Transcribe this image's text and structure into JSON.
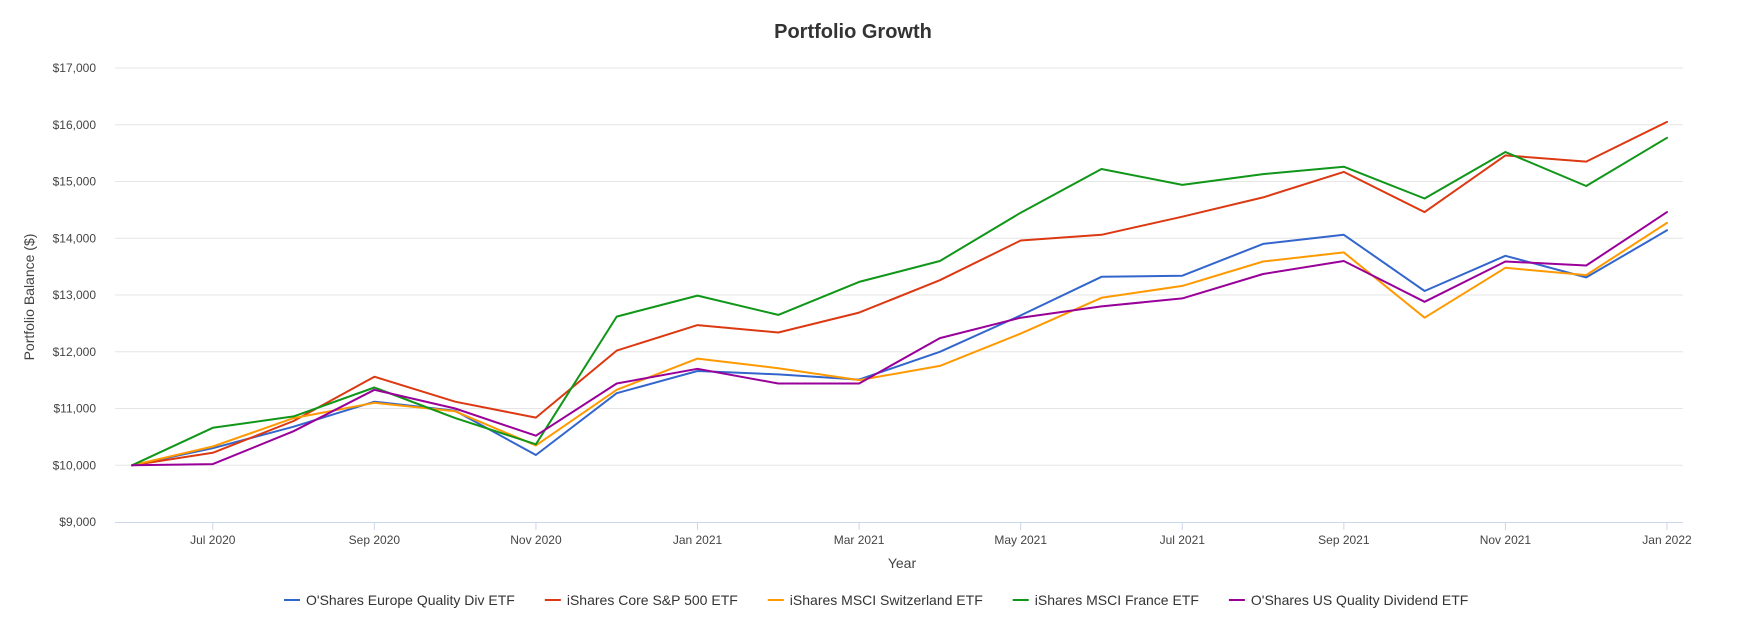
{
  "chart_data": {
    "type": "line",
    "title": "Portfolio Growth",
    "xlabel": "Year",
    "ylabel": "Portfolio Balance ($)",
    "ylim": [
      9000,
      17000
    ],
    "y_ticks": [
      "$9,000",
      "$10,000",
      "$11,000",
      "$12,000",
      "$13,000",
      "$14,000",
      "$15,000",
      "$16,000",
      "$17,000"
    ],
    "y_tick_values": [
      9000,
      10000,
      11000,
      12000,
      13000,
      14000,
      15000,
      16000,
      17000
    ],
    "x_ticks": [
      "Jul 2020",
      "Sep 2020",
      "Nov 2020",
      "Jan 2021",
      "Mar 2021",
      "May 2021",
      "Jul 2021",
      "Sep 2021",
      "Nov 2021",
      "Jan 2022"
    ],
    "x": [
      "Jun 2020",
      "Jul 2020",
      "Aug 2020",
      "Sep 2020",
      "Oct 2020",
      "Nov 2020",
      "Dec 2020",
      "Jan 2021",
      "Feb 2021",
      "Mar 2021",
      "Apr 2021",
      "May 2021",
      "Jun 2021",
      "Jul 2021",
      "Aug 2021",
      "Sep 2021",
      "Oct 2021",
      "Nov 2021",
      "Dec 2021",
      "Jan 2022"
    ],
    "grid": true,
    "legend_position": "bottom",
    "series": [
      {
        "name": "O'Shares Europe Quality Div ETF",
        "color": "#3366cc",
        "values": [
          10000,
          10300,
          10680,
          11120,
          10960,
          10180,
          11270,
          11660,
          11600,
          11510,
          12000,
          12640,
          13320,
          13340,
          13900,
          14060,
          13070,
          13690,
          13310,
          14140
        ]
      },
      {
        "name": "iShares Core S&P 500 ETF",
        "color": "#dc3912",
        "values": [
          10000,
          10220,
          10780,
          11560,
          11120,
          10840,
          12020,
          12470,
          12340,
          12690,
          13260,
          13960,
          14060,
          14380,
          14720,
          15170,
          14460,
          15460,
          15350,
          16050
        ]
      },
      {
        "name": "iShares MSCI Switzerland ETF",
        "color": "#ff9900",
        "values": [
          10000,
          10330,
          10830,
          11100,
          10950,
          10350,
          11330,
          11880,
          11710,
          11500,
          11750,
          12320,
          12950,
          13160,
          13590,
          13750,
          12600,
          13480,
          13350,
          14270
        ]
      },
      {
        "name": "iShares MSCI France ETF",
        "color": "#109618",
        "values": [
          10000,
          10660,
          10860,
          11370,
          10830,
          10370,
          12620,
          12990,
          12650,
          13230,
          13600,
          14450,
          15220,
          14940,
          15130,
          15260,
          14700,
          15520,
          14920,
          15770
        ]
      },
      {
        "name": "O'Shares US Quality Dividend ETF",
        "color": "#990099",
        "values": [
          10000,
          10020,
          10600,
          11330,
          11000,
          10520,
          11440,
          11700,
          11440,
          11440,
          12240,
          12600,
          12800,
          12940,
          13370,
          13600,
          12880,
          13590,
          13520,
          14460
        ]
      }
    ]
  }
}
